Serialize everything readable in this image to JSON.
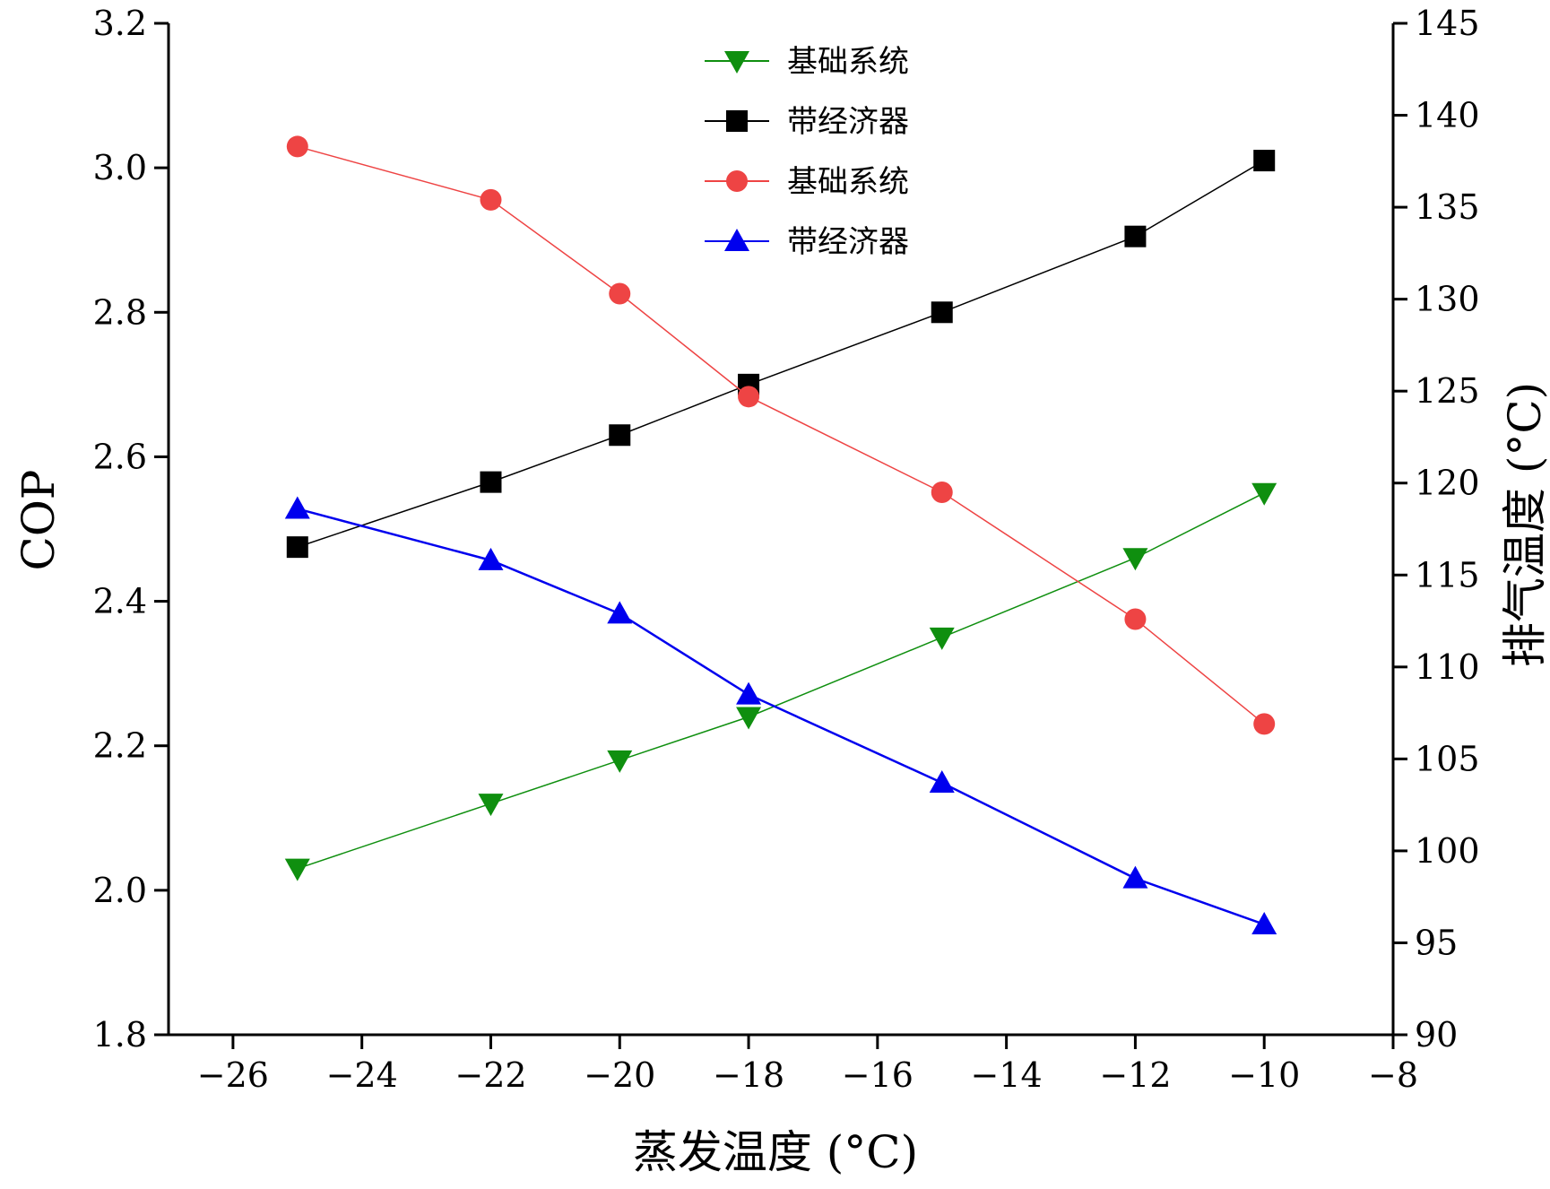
{
  "chart_data": {
    "type": "line",
    "title": "",
    "xlabel": "蒸发温度 (°C)",
    "ylabel_left": "COP",
    "ylabel_right": "排气温度 (°C)",
    "xlim": [
      -27,
      -8
    ],
    "ylim_left": [
      1.8,
      3.2
    ],
    "ylim_right": [
      90,
      145
    ],
    "x_ticks": [
      -26,
      -24,
      -22,
      -20,
      -18,
      -16,
      -14,
      -12,
      -10,
      -8
    ],
    "x_tick_labels": [
      "−26",
      "−24",
      "−22",
      "−20",
      "−18",
      "−16",
      "−14",
      "−12",
      "−10",
      "−8"
    ],
    "y_left_ticks": [
      1.8,
      2.0,
      2.2,
      2.4,
      2.6,
      2.8,
      3.0,
      3.2
    ],
    "y_left_tick_labels": [
      "1.8",
      "2.0",
      "2.2",
      "2.4",
      "2.6",
      "2.8",
      "3.0",
      "3.2"
    ],
    "y_right_ticks": [
      90,
      95,
      100,
      105,
      110,
      115,
      120,
      125,
      130,
      135,
      140,
      145
    ],
    "y_right_tick_labels": [
      "90",
      "95",
      "100",
      "105",
      "110",
      "115",
      "120",
      "125",
      "130",
      "135",
      "140",
      "145"
    ],
    "grid": false,
    "legend_position": "top-center",
    "x": [
      -25,
      -22,
      -20,
      -18,
      -15,
      -12,
      -10
    ],
    "series": [
      {
        "name": "基础系统",
        "axis": "left",
        "marker": "triangle-down",
        "color": "#0f8f0f",
        "values": [
          2.03,
          2.12,
          2.18,
          2.24,
          2.35,
          2.46,
          2.55
        ]
      },
      {
        "name": "带经济器",
        "axis": "left",
        "marker": "square",
        "color": "#000000",
        "values": [
          2.475,
          2.565,
          2.63,
          2.7,
          2.8,
          2.905,
          3.01
        ]
      },
      {
        "name": "基础系统",
        "axis": "right",
        "marker": "circle",
        "color": "#ee4444",
        "values": [
          138.3,
          135.4,
          130.3,
          124.7,
          119.5,
          112.6,
          106.9
        ]
      },
      {
        "name": "带经济器",
        "axis": "right",
        "marker": "triangle-up",
        "color": "#0000ee",
        "values": [
          118.6,
          115.8,
          112.9,
          108.5,
          103.7,
          98.5,
          96.0
        ]
      }
    ]
  }
}
